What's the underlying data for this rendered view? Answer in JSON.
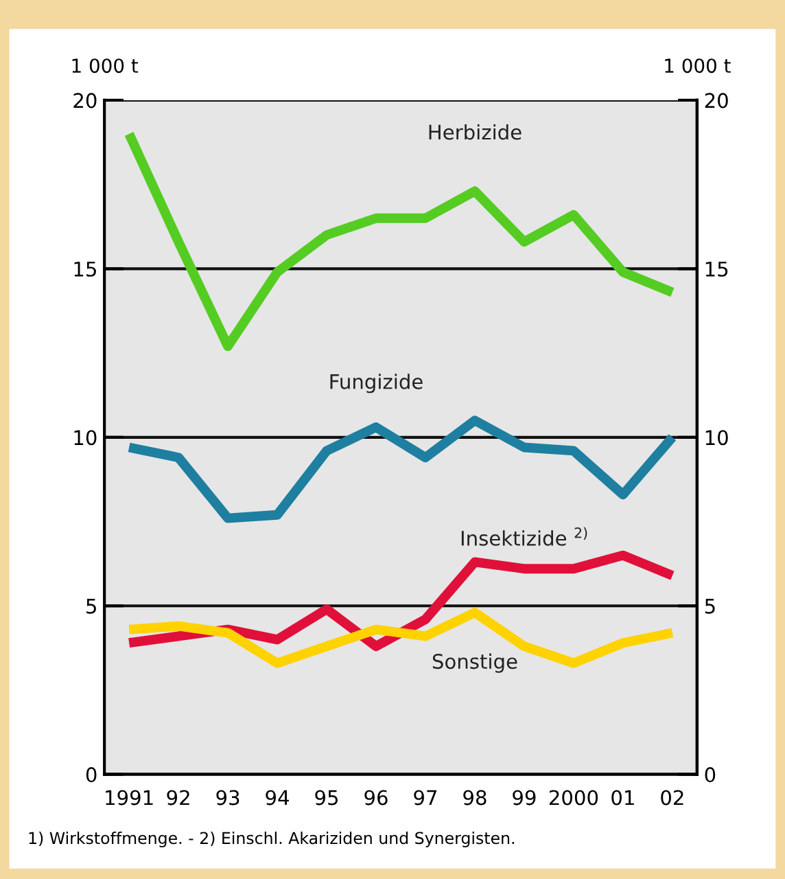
{
  "chart_data": {
    "type": "line",
    "ylabel": "1 000 t",
    "y2label": "1 000 t",
    "categories": [
      "1991",
      "92",
      "93",
      "94",
      "95",
      "96",
      "97",
      "98",
      "99",
      "2000",
      "01",
      "02"
    ],
    "series": [
      {
        "name": "Herbizide",
        "color": "#55cc22",
        "values": [
          19.0,
          15.8,
          12.7,
          14.9,
          16.0,
          16.5,
          16.5,
          17.3,
          15.8,
          16.6,
          14.9,
          14.3
        ]
      },
      {
        "name": "Fungizide",
        "color": "#1e7fa0",
        "values": [
          9.7,
          9.4,
          7.6,
          7.7,
          9.6,
          10.3,
          9.4,
          10.5,
          9.7,
          9.6,
          8.3,
          10.0
        ]
      },
      {
        "name": "Insektizide $^{2)}$",
        "color": "#e0103a",
        "values": [
          3.9,
          4.1,
          4.3,
          4.0,
          4.9,
          3.8,
          4.6,
          6.3,
          6.1,
          6.1,
          6.5,
          5.9
        ]
      },
      {
        "name": "Sonstige",
        "color": "#ffd200",
        "values": [
          4.3,
          4.4,
          4.2,
          3.3,
          3.8,
          4.3,
          4.1,
          4.8,
          3.8,
          3.3,
          3.9,
          4.2
        ]
      }
    ],
    "ylim": [
      0,
      20
    ],
    "yticks": [
      0,
      5,
      10,
      15,
      20
    ],
    "y2lim": [
      0,
      20
    ],
    "y2ticks": [
      0,
      5,
      10,
      15,
      20
    ],
    "grid": "y",
    "legend": false,
    "marker": "none",
    "line_style": "solid",
    "annotations": [
      "1) Wirkstoffmenge. - 2) Einschl. Akariziden und Synergisten."
    ]
  }
}
